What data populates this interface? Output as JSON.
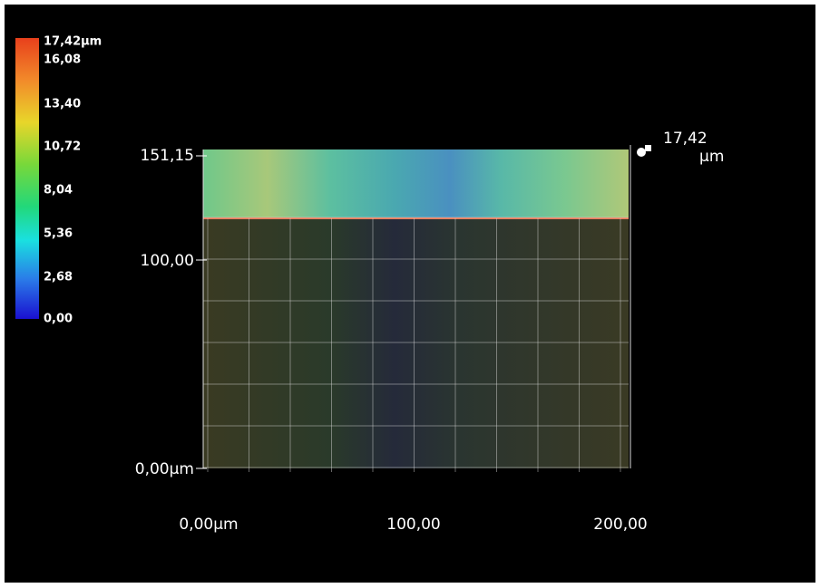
{
  "colorbar": {
    "labels": [
      "17,42µm",
      "16,08",
      "13,40",
      "10,72",
      "8,04",
      "5,36",
      "2,68",
      "0,00"
    ]
  },
  "y_axis": {
    "labels": [
      "151,15",
      "100,00",
      "0,00µm"
    ]
  },
  "x_axis": {
    "labels": [
      "0,00µm",
      "100,00",
      "200,00"
    ]
  },
  "z_axis": {
    "label": "17,42",
    "unit": "µm"
  }
}
